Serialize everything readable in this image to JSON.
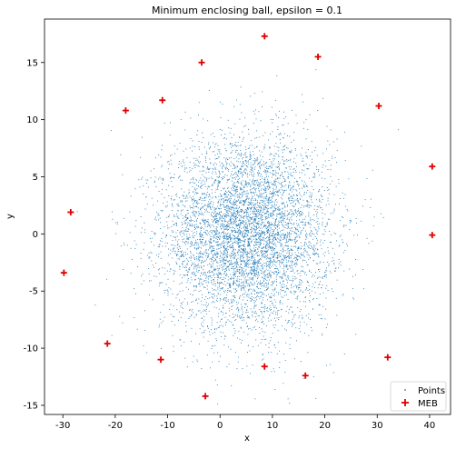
{
  "chart_data": {
    "type": "scatter",
    "title": "Minimum enclosing ball, epsilon = 0.1",
    "xlabel": "x",
    "ylabel": "y",
    "xlim": [
      -33.5,
      44.0
    ],
    "ylim": [
      -15.8,
      18.8
    ],
    "xticks": [
      -30,
      -20,
      -10,
      0,
      10,
      20,
      30,
      40
    ],
    "yticks": [
      -15,
      -10,
      -5,
      0,
      5,
      10,
      15
    ],
    "grid": false,
    "legend_position": "lower-right",
    "legend": [
      {
        "label": "Points",
        "color": "#1f77b4",
        "marker": "dot"
      },
      {
        "label": "MEB",
        "color": "#e00000",
        "marker": "plus"
      }
    ],
    "points_cloud": {
      "name": "Points",
      "count": 6000,
      "center": [
        5.0,
        0.0
      ],
      "std": [
        8.0,
        4.2
      ],
      "color": "#1f77b4"
    },
    "series": [
      {
        "name": "MEB",
        "color": "#e00000",
        "x": [
          8.5,
          18.7,
          -3.5,
          30.3,
          -11.0,
          -18.0,
          40.5,
          -28.5,
          -29.8,
          40.5,
          -21.5,
          -11.3,
          32.0,
          8.5,
          16.3,
          -2.8
        ],
        "y": [
          17.3,
          15.5,
          15.0,
          11.2,
          11.7,
          10.8,
          5.9,
          1.9,
          -3.4,
          -0.1,
          -9.6,
          -11.0,
          -10.8,
          -11.6,
          -12.4,
          -14.2
        ]
      }
    ]
  }
}
